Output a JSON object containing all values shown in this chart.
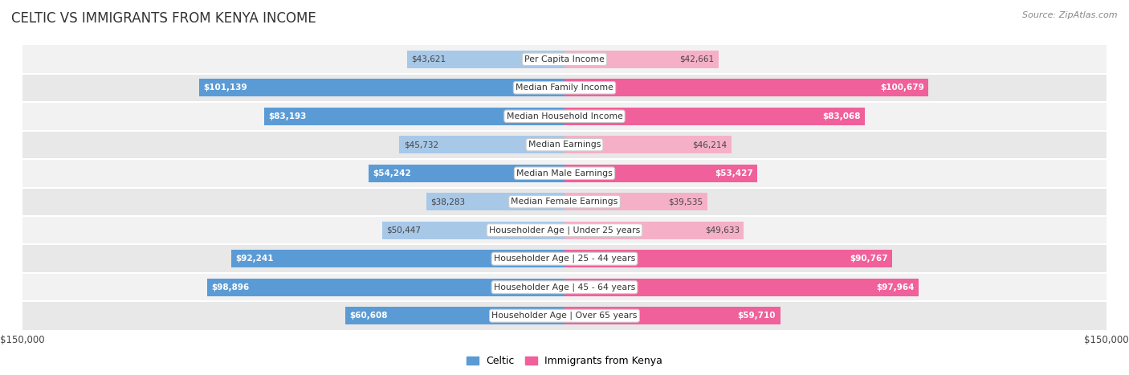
{
  "title": "CELTIC VS IMMIGRANTS FROM KENYA INCOME",
  "source": "Source: ZipAtlas.com",
  "categories": [
    "Per Capita Income",
    "Median Family Income",
    "Median Household Income",
    "Median Earnings",
    "Median Male Earnings",
    "Median Female Earnings",
    "Householder Age | Under 25 years",
    "Householder Age | 25 - 44 years",
    "Householder Age | 45 - 64 years",
    "Householder Age | Over 65 years"
  ],
  "celtic_values": [
    43621,
    101139,
    83193,
    45732,
    54242,
    38283,
    50447,
    92241,
    98896,
    60608
  ],
  "kenya_values": [
    42661,
    100679,
    83068,
    46214,
    53427,
    39535,
    49633,
    90767,
    97964,
    59710
  ],
  "celtic_labels": [
    "$43,621",
    "$101,139",
    "$83,193",
    "$45,732",
    "$54,242",
    "$38,283",
    "$50,447",
    "$92,241",
    "$98,896",
    "$60,608"
  ],
  "kenya_labels": [
    "$42,661",
    "$100,679",
    "$83,068",
    "$46,214",
    "$53,427",
    "$39,535",
    "$49,633",
    "$90,767",
    "$97,964",
    "$59,710"
  ],
  "celtic_color_light": "#a8c8e8",
  "celtic_color_dark": "#5b9bd5",
  "kenya_color_light": "#f5b0c8",
  "kenya_color_dark": "#f0609a",
  "row_bg_even": "#f2f2f2",
  "row_bg_odd": "#e8e8e8",
  "max_value": 150000,
  "bar_height": 0.62,
  "inside_label_threshold": 52000,
  "legend_celtic": "Celtic",
  "legend_kenya": "Immigrants from Kenya",
  "x_tick_label": "$150,000"
}
